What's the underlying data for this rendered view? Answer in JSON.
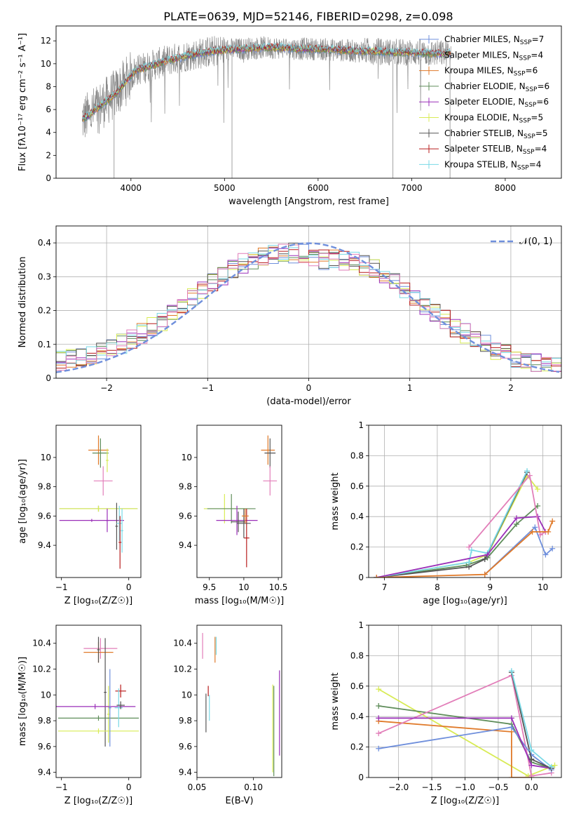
{
  "figure": {
    "title": "PLATE=0639, MJD=52146, FIBERID=0298, z=0.098"
  },
  "colors": {
    "blue": "#6f8fdc",
    "orange": "#e07a2a",
    "green": "#5f8d5a",
    "purple": "#9a2fb8",
    "yellow": "#d8eb55",
    "darkgray": "#555555",
    "red": "#b81d1d",
    "cyan": "#7ad9e6",
    "pink": "#e27eb9",
    "gray": "#8a8a8a",
    "grid": "#b0b0b0"
  },
  "chart_data": [
    {
      "id": "spectrum",
      "type": "line",
      "xlabel": "wavelength [Angstrom, rest frame]",
      "ylabel": "Flux [fλ10⁻¹⁷ erg cm⁻² s⁻¹ A⁻¹]",
      "xlim": [
        3200,
        8600
      ],
      "ylim": [
        0,
        13.3
      ],
      "xticks": [
        4000,
        5000,
        6000,
        7000,
        8000
      ],
      "yticks": [
        0,
        2,
        4,
        6,
        8,
        10,
        12
      ],
      "grid": false,
      "legend_position": "right",
      "legend": [
        {
          "label": "Chabrier MILES, N",
          "sub": "SSP",
          "suffix": "=7",
          "color": "#6f8fdc"
        },
        {
          "label": "Salpeter MILES, N",
          "sub": "SSP",
          "suffix": "=4",
          "color": "#5f8d5a"
        },
        {
          "label": "Kroupa MILES, N",
          "sub": "SSP",
          "suffix": "=6",
          "color": "#e07a2a"
        },
        {
          "label": "Chabrier ELODIE, N",
          "sub": "SSP",
          "suffix": "=6",
          "color": "#5f8d5a"
        },
        {
          "label": "Salpeter ELODIE, N",
          "sub": "SSP",
          "suffix": "=6",
          "color": "#9a2fb8"
        },
        {
          "label": "Kroupa ELODIE, N",
          "sub": "SSP",
          "suffix": "=5",
          "color": "#d8eb55"
        },
        {
          "label": "Chabrier STELIB, N",
          "sub": "SSP",
          "suffix": "=5",
          "color": "#555555"
        },
        {
          "label": "Salpeter STELIB, N",
          "sub": "SSP",
          "suffix": "=4",
          "color": "#b81d1d"
        },
        {
          "label": "Kroupa STELIB, N",
          "sub": "SSP",
          "suffix": "=4",
          "color": "#7ad9e6"
        }
      ],
      "continuum": {
        "x": [
          3450,
          3550,
          3650,
          3750,
          3850,
          3950,
          4050,
          4200,
          4400,
          4600,
          4800,
          5000,
          5200,
          5400,
          5600,
          5800,
          6000,
          6200,
          6400,
          6600,
          6800,
          7000,
          7200,
          7400,
          7600,
          7800,
          8000,
          8200,
          8400,
          8600
        ],
        "y": [
          5.0,
          5.5,
          6.2,
          6.8,
          7.5,
          8.5,
          9.4,
          9.8,
          10.3,
          10.7,
          11.0,
          11.2,
          11.3,
          11.4,
          11.4,
          11.3,
          11.3,
          11.2,
          11.1,
          11.1,
          11.0,
          11.0,
          10.9,
          10.9,
          10.8,
          10.8,
          10.7,
          10.7,
          10.6,
          10.6
        ]
      }
    },
    {
      "id": "residuals",
      "type": "histogram",
      "xlabel": "(data-model)/error",
      "ylabel": "Normed distribution",
      "xlim": [
        -2.5,
        2.5
      ],
      "ylim": [
        0,
        0.45
      ],
      "xticks": [
        -2,
        -1,
        0,
        1,
        2
      ],
      "xticklabels": [
        "−2",
        "−1",
        "0",
        "1",
        "2"
      ],
      "yticks": [
        0.0,
        0.1,
        0.2,
        0.3,
        0.4
      ],
      "grid": true,
      "legend": [
        {
          "label": "𝒩(0, 1)",
          "style": "dashed",
          "color": "#6f8fdc"
        }
      ],
      "bin_width": 0.1
    },
    {
      "id": "age_vs_Z",
      "type": "errorbar",
      "xlabel": "Z [log₁₀(Z/Z☉)]",
      "ylabel": "age  [log₁₀(age/yr)]",
      "xlim": [
        -1.08,
        0.18
      ],
      "ylim": [
        9.18,
        10.22
      ],
      "xticks": [
        -1,
        0
      ],
      "xticklabels": [
        "−1",
        "0"
      ],
      "yticks": [
        9.4,
        9.6,
        9.8,
        10.0
      ],
      "grid": false,
      "points": [
        {
          "x": -0.45,
          "y": 10.05,
          "xerr": 0.15,
          "yerr": 0.1,
          "color": "#e07a2a"
        },
        {
          "x": -0.42,
          "y": 10.03,
          "xerr": 0.12,
          "yerr": 0.1,
          "color": "#5f8d5a"
        },
        {
          "x": -0.38,
          "y": 9.84,
          "xerr": 0.14,
          "yerr": 0.1,
          "color": "#e27eb9"
        },
        {
          "x": -0.32,
          "y": 9.98,
          "xerr": 0.02,
          "yerr": 0.08,
          "color": "#d8eb55"
        },
        {
          "x": -0.45,
          "y": 9.65,
          "xerr": 0.58,
          "yerr": 0.02,
          "color": "#5f8d5a"
        },
        {
          "x": -0.45,
          "y": 9.65,
          "xerr": 0.58,
          "yerr": 0.02,
          "color": "#d8eb55"
        },
        {
          "x": -0.55,
          "y": 9.57,
          "xerr": 0.48,
          "yerr": 0.01,
          "color": "#9a2fb8"
        },
        {
          "x": -0.32,
          "y": 9.57,
          "xerr": 0.02,
          "yerr": 0.08,
          "color": "#9a2fb8"
        },
        {
          "x": -0.18,
          "y": 9.53,
          "xerr": 0.02,
          "yerr": 0.16,
          "color": "#555555"
        },
        {
          "x": -0.14,
          "y": 9.55,
          "xerr": 0.04,
          "yerr": 0.12,
          "color": "#7ad9e6"
        },
        {
          "x": -0.13,
          "y": 9.42,
          "xerr": 0.02,
          "yerr": 0.18,
          "color": "#b81d1d"
        },
        {
          "x": -0.1,
          "y": 9.5,
          "xerr": 0.02,
          "yerr": 0.15,
          "color": "#7ad9e6"
        }
      ]
    },
    {
      "id": "age_vs_mass",
      "type": "errorbar",
      "xlabel": "mass [log₁₀(M/M☉)]",
      "ylabel": "",
      "xlim": [
        9.32,
        10.55
      ],
      "ylim": [
        9.18,
        10.22
      ],
      "xticks": [
        9.5,
        10.0,
        10.5
      ],
      "yticks": [
        9.4,
        9.6,
        9.8,
        10.0
      ],
      "grid": false,
      "points": [
        {
          "x": 10.35,
          "y": 10.05,
          "xerr": 0.1,
          "yerr": 0.1,
          "color": "#e07a2a"
        },
        {
          "x": 10.38,
          "y": 10.03,
          "xerr": 0.08,
          "yerr": 0.1,
          "color": "#555555"
        },
        {
          "x": 10.38,
          "y": 9.84,
          "xerr": 0.1,
          "yerr": 0.1,
          "color": "#e27eb9"
        },
        {
          "x": 9.72,
          "y": 9.65,
          "xerr": 0.3,
          "yerr": 0.1,
          "color": "#d8eb55"
        },
        {
          "x": 9.82,
          "y": 9.65,
          "xerr": 0.35,
          "yerr": 0.1,
          "color": "#5f8d5a"
        },
        {
          "x": 9.9,
          "y": 9.57,
          "xerr": 0.3,
          "yerr": 0.1,
          "color": "#9a2fb8"
        },
        {
          "x": 9.92,
          "y": 9.56,
          "xerr": 0.1,
          "yerr": 0.07,
          "color": "#555555"
        },
        {
          "x": 10.04,
          "y": 9.45,
          "xerr": 0.04,
          "yerr": 0.2,
          "color": "#b81d1d"
        },
        {
          "x": 10.0,
          "y": 9.55,
          "xerr": 0.1,
          "yerr": 0.1,
          "color": "#555555"
        },
        {
          "x": 10.02,
          "y": 9.6,
          "xerr": 0.05,
          "yerr": 0.05,
          "color": "#e07a2a"
        }
      ]
    },
    {
      "id": "weight_vs_age",
      "type": "line",
      "xlabel": "age  [log₁₀(age/yr)]",
      "ylabel": "mass weight",
      "xlim": [
        6.7,
        10.35
      ],
      "ylim": [
        0,
        1
      ],
      "xticks": [
        7,
        8,
        9,
        10
      ],
      "yticks": [
        0.0,
        0.2,
        0.4,
        0.6,
        0.8,
        1.0
      ],
      "grid": true,
      "series": [
        {
          "color": "#d8eb55",
          "x": [
            6.85,
            8.6,
            8.95,
            9.7,
            9.9
          ],
          "y": [
            0.0,
            0.1,
            0.15,
            0.67,
            0.58
          ]
        },
        {
          "color": "#5f8d5a",
          "x": [
            6.85,
            8.55,
            8.95,
            9.5,
            9.9
          ],
          "y": [
            0.0,
            0.08,
            0.13,
            0.35,
            0.47
          ]
        },
        {
          "color": "#555555",
          "x": [
            6.85,
            8.6,
            8.9,
            9.7
          ],
          "y": [
            0.0,
            0.07,
            0.12,
            0.69
          ]
        },
        {
          "color": "#7ad9e6",
          "x": [
            6.85,
            8.6,
            8.65,
            8.95,
            9.7
          ],
          "y": [
            0.0,
            0.1,
            0.18,
            0.16,
            0.7
          ]
        },
        {
          "color": "#9a2fb8",
          "x": [
            6.85,
            8.95,
            9.5,
            9.9,
            10.05
          ],
          "y": [
            0.0,
            0.15,
            0.39,
            0.4,
            0.3
          ]
        },
        {
          "color": "#e27eb9",
          "x": [
            8.6,
            9.75,
            9.95,
            10.05
          ],
          "y": [
            0.2,
            0.67,
            0.28,
            0.3
          ]
        },
        {
          "color": "#6f8fdc",
          "x": [
            8.9,
            9.85,
            10.05,
            10.18
          ],
          "y": [
            0.02,
            0.33,
            0.15,
            0.19
          ]
        },
        {
          "color": "#e07a2a",
          "x": [
            6.85,
            8.9,
            9.8,
            10.1,
            10.18
          ],
          "y": [
            0.0,
            0.02,
            0.3,
            0.3,
            0.37
          ]
        }
      ]
    },
    {
      "id": "mass_vs_Z",
      "type": "errorbar",
      "xlabel": "Z [log₁₀(Z/Z☉)]",
      "ylabel": "mass [log₁₀(M/M☉)]",
      "xlim": [
        -1.08,
        0.18
      ],
      "ylim": [
        9.36,
        10.54
      ],
      "xticks": [
        -1,
        0
      ],
      "xticklabels": [
        "−1",
        "0"
      ],
      "yticks": [
        9.4,
        9.6,
        9.8,
        10.0,
        10.2,
        10.4
      ],
      "grid": false,
      "points": [
        {
          "x": -0.42,
          "y": 10.36,
          "xerr": 0.25,
          "yerr": 0.08,
          "color": "#e27eb9"
        },
        {
          "x": -0.45,
          "y": 10.33,
          "xerr": 0.22,
          "yerr": 0.08,
          "color": "#e07a2a"
        },
        {
          "x": -0.45,
          "y": 10.35,
          "xerr": 0.02,
          "yerr": 0.1,
          "color": "#555555"
        },
        {
          "x": -0.35,
          "y": 10.02,
          "xerr": 0.02,
          "yerr": 0.42,
          "color": "#555555"
        },
        {
          "x": -0.3,
          "y": 9.85,
          "xerr": 0.02,
          "yerr": 0.22,
          "color": "#d8eb55"
        },
        {
          "x": -0.5,
          "y": 9.91,
          "xerr": 0.6,
          "yerr": 0.02,
          "color": "#9a2fb8"
        },
        {
          "x": -0.45,
          "y": 9.82,
          "xerr": 0.6,
          "yerr": 0.02,
          "color": "#5f8d5a"
        },
        {
          "x": -0.45,
          "y": 9.72,
          "xerr": 0.6,
          "yerr": 0.02,
          "color": "#d8eb55"
        },
        {
          "x": -0.28,
          "y": 9.9,
          "xerr": 0.02,
          "yerr": 0.3,
          "color": "#6f8fdc"
        },
        {
          "x": -0.12,
          "y": 10.03,
          "xerr": 0.08,
          "yerr": 0.05,
          "color": "#b81d1d"
        },
        {
          "x": -0.15,
          "y": 9.9,
          "xerr": 0.06,
          "yerr": 0.15,
          "color": "#7ad9e6"
        },
        {
          "x": -0.12,
          "y": 9.92,
          "xerr": 0.06,
          "yerr": 0.03,
          "color": "#555555"
        }
      ]
    },
    {
      "id": "mass_vs_ebv",
      "type": "errorbar",
      "xlabel": "E(B-V)",
      "ylabel": "",
      "xlim": [
        0.05,
        0.125
      ],
      "ylim": [
        9.36,
        10.54
      ],
      "xticks": [
        0.05,
        0.1
      ],
      "xticklabels": [
        "0.05",
        "0.10"
      ],
      "yticks": [
        9.4,
        9.6,
        9.8,
        10.0,
        10.2,
        10.4
      ],
      "grid": false,
      "points": [
        {
          "x": 0.055,
          "y": 10.38,
          "xerr": 0,
          "yerr": 0.1,
          "color": "#e27eb9"
        },
        {
          "x": 0.066,
          "y": 10.35,
          "xerr": 0,
          "yerr": 0.1,
          "color": "#e07a2a"
        },
        {
          "x": 0.067,
          "y": 10.38,
          "xerr": 0,
          "yerr": 0.07,
          "color": "#7ad9e6"
        },
        {
          "x": 0.06,
          "y": 10.03,
          "xerr": 0,
          "yerr": 0.04,
          "color": "#b81d1d"
        },
        {
          "x": 0.058,
          "y": 9.86,
          "xerr": 0,
          "yerr": 0.15,
          "color": "#555555"
        },
        {
          "x": 0.061,
          "y": 9.9,
          "xerr": 0,
          "yerr": 0.1,
          "color": "#7ad9e6"
        },
        {
          "x": 0.117,
          "y": 9.74,
          "xerr": 0,
          "yerr": 0.34,
          "color": "#d8eb55"
        },
        {
          "x": 0.118,
          "y": 9.72,
          "xerr": 0,
          "yerr": 0.35,
          "color": "#5f8d5a"
        },
        {
          "x": 0.123,
          "y": 9.86,
          "xerr": 0,
          "yerr": 0.33,
          "color": "#9a2fb8"
        }
      ]
    },
    {
      "id": "weight_vs_Z",
      "type": "line",
      "xlabel": "Z [log₁₀(Z/Z☉)]",
      "ylabel": "mass weight",
      "xlim": [
        -2.45,
        0.45
      ],
      "ylim": [
        0,
        1
      ],
      "xticks": [
        -2.0,
        -1.5,
        -1.0,
        -0.5,
        0.0
      ],
      "xticklabels": [
        "−2.0",
        "−1.5",
        "−1.0",
        "−0.5",
        "0.0"
      ],
      "yticks": [
        0.0,
        0.2,
        0.4,
        0.6,
        0.8,
        1.0
      ],
      "grid": true,
      "series": [
        {
          "color": "#d8eb55",
          "x": [
            -2.3,
            -0.05,
            0.35
          ],
          "y": [
            0.58,
            0.01,
            0.08
          ]
        },
        {
          "color": "#5f8d5a",
          "x": [
            -2.3,
            -0.3,
            0.0,
            0.3
          ],
          "y": [
            0.47,
            0.35,
            0.1,
            0.06
          ]
        },
        {
          "color": "#e07a2a",
          "x": [
            -2.3,
            -0.3,
            -0.3,
            0.0
          ],
          "y": [
            0.37,
            0.3,
            0.0,
            0.0
          ]
        },
        {
          "color": "#e27eb9",
          "x": [
            -2.3,
            -0.3,
            0.0,
            0.3
          ],
          "y": [
            0.29,
            0.67,
            0.01,
            0.03
          ]
        },
        {
          "color": "#6f8fdc",
          "x": [
            -2.3,
            -0.3,
            0.0,
            0.3
          ],
          "y": [
            0.19,
            0.33,
            0.15,
            0.05
          ]
        },
        {
          "color": "#9a2fb8",
          "x": [
            -2.3,
            -0.3,
            0.0,
            0.3
          ],
          "y": [
            0.39,
            0.39,
            0.08,
            0.06
          ]
        },
        {
          "color": "#555555",
          "x": [
            -0.3,
            0.0,
            0.3
          ],
          "y": [
            0.69,
            0.12,
            0.06
          ]
        },
        {
          "color": "#7ad9e6",
          "x": [
            -0.3,
            0.0,
            0.3
          ],
          "y": [
            0.7,
            0.18,
            0.07
          ]
        }
      ]
    }
  ]
}
